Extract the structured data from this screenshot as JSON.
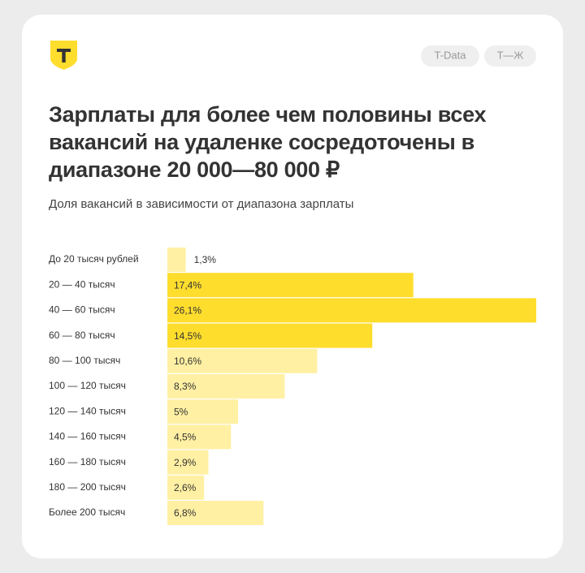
{
  "header": {
    "tags": [
      "T-Data",
      "Т—Ж"
    ]
  },
  "chart_data": {
    "type": "barh",
    "title": "Зарплаты для более чем половины всех вакансий на удаленке сосредоточены в диапазоне 20 000—80 000 ₽",
    "subtitle": "Доля вакансий в зависимости от диапазона зарплаты",
    "categories": [
      "До 20 тысяч рублей",
      "20 — 40 тысяч",
      "40 — 60 тысяч",
      "60 — 80 тысяч",
      "80 — 100 тысяч",
      "100 — 120 тысяч",
      "120 — 140 тысяч",
      "140 — 160 тысяч",
      "160 — 180 тысяч",
      "180 — 200 тысяч",
      "Более 200 тысяч"
    ],
    "values": [
      1.3,
      17.4,
      26.1,
      14.5,
      10.6,
      8.3,
      5,
      4.5,
      2.9,
      2.6,
      6.8
    ],
    "value_labels": [
      "1,3%",
      "17,4%",
      "26,1%",
      "14,5%",
      "10,6%",
      "8,3%",
      "5%",
      "4,5%",
      "2,9%",
      "2,6%",
      "6,8%"
    ],
    "colors": [
      "#fff0a3",
      "#ffdd2d",
      "#ffdd2d",
      "#ffdd2d",
      "#fff0a3",
      "#fff0a3",
      "#fff0a3",
      "#fff0a3",
      "#fff0a3",
      "#fff0a3",
      "#fff0a3"
    ]
  }
}
